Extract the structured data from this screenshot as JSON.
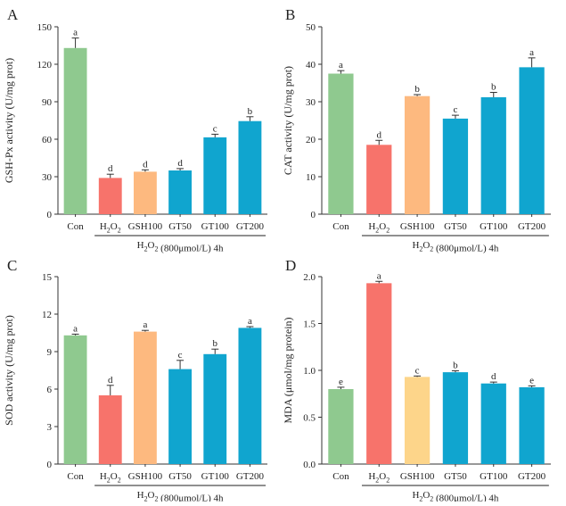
{
  "treatment_label": "H2O2 (800μmol/L) 4h",
  "colors": {
    "Con": "#8FC98F",
    "H2O2": "#F7736B",
    "GSH100": "#FDB97F",
    "GT": "#10A5CF",
    "GSH100_D": "#FDD58A"
  },
  "chart_data": [
    {
      "panel": "A",
      "type": "bar",
      "ylabel": "GSH-Px activity (U/mg prot)",
      "ylim": [
        0,
        150
      ],
      "yticks": [
        0,
        30,
        60,
        90,
        120,
        150
      ],
      "categories": [
        "Con",
        "H2O2",
        "GSH100",
        "GT50",
        "GT100",
        "GT200"
      ],
      "values": [
        133,
        29,
        34,
        35,
        61.5,
        74.5
      ],
      "errors": [
        8,
        3,
        1.5,
        1.5,
        2.5,
        3.5
      ],
      "letters": [
        "a",
        "d",
        "d",
        "d",
        "c",
        "b"
      ],
      "xlabel": "H2O2 (800μmol/L) 4h"
    },
    {
      "panel": "B",
      "type": "bar",
      "ylabel": "CAT activity (U/mg prot)",
      "ylim": [
        0,
        50
      ],
      "yticks": [
        0,
        10,
        20,
        30,
        40,
        50
      ],
      "categories": [
        "Con",
        "H2O2",
        "GSH100",
        "GT50",
        "GT100",
        "GT200"
      ],
      "values": [
        37.5,
        18.5,
        31.5,
        25.5,
        31.2,
        39.2
      ],
      "errors": [
        0.8,
        1.2,
        0.4,
        0.9,
        1.3,
        2.5
      ],
      "letters": [
        "a",
        "d",
        "b",
        "c",
        "b",
        "a"
      ],
      "xlabel": "H2O2 (800μmol/L) 4h"
    },
    {
      "panel": "C",
      "type": "bar",
      "ylabel": "SOD activity (U/mg prot)",
      "ylim": [
        0,
        15
      ],
      "yticks": [
        0,
        3,
        6,
        9,
        12,
        15
      ],
      "categories": [
        "Con",
        "H2O2",
        "GSH100",
        "GT50",
        "GT100",
        "GT200"
      ],
      "values": [
        10.3,
        5.5,
        10.6,
        7.6,
        8.8,
        10.9
      ],
      "errors": [
        0.1,
        0.8,
        0.1,
        0.7,
        0.4,
        0.1
      ],
      "letters": [
        "a",
        "d",
        "a",
        "c",
        "b",
        "a"
      ],
      "xlabel": "H2O2 (800μmol/L) 4h"
    },
    {
      "panel": "D",
      "type": "bar",
      "ylabel": "MDA (μmol/mg protein)",
      "ylim": [
        0,
        2.0
      ],
      "yticks": [
        0.0,
        0.5,
        1.0,
        1.5,
        2.0
      ],
      "categories": [
        "Con",
        "H2O2",
        "GSH100",
        "GT50",
        "GT100",
        "GT200"
      ],
      "values": [
        0.8,
        1.93,
        0.93,
        0.98,
        0.86,
        0.82
      ],
      "errors": [
        0.02,
        0.02,
        0.01,
        0.015,
        0.015,
        0.015
      ],
      "letters": [
        "e",
        "a",
        "c",
        "b",
        "d",
        "e"
      ],
      "xlabel": "H2O2 (800μmol/L) 4h"
    }
  ]
}
